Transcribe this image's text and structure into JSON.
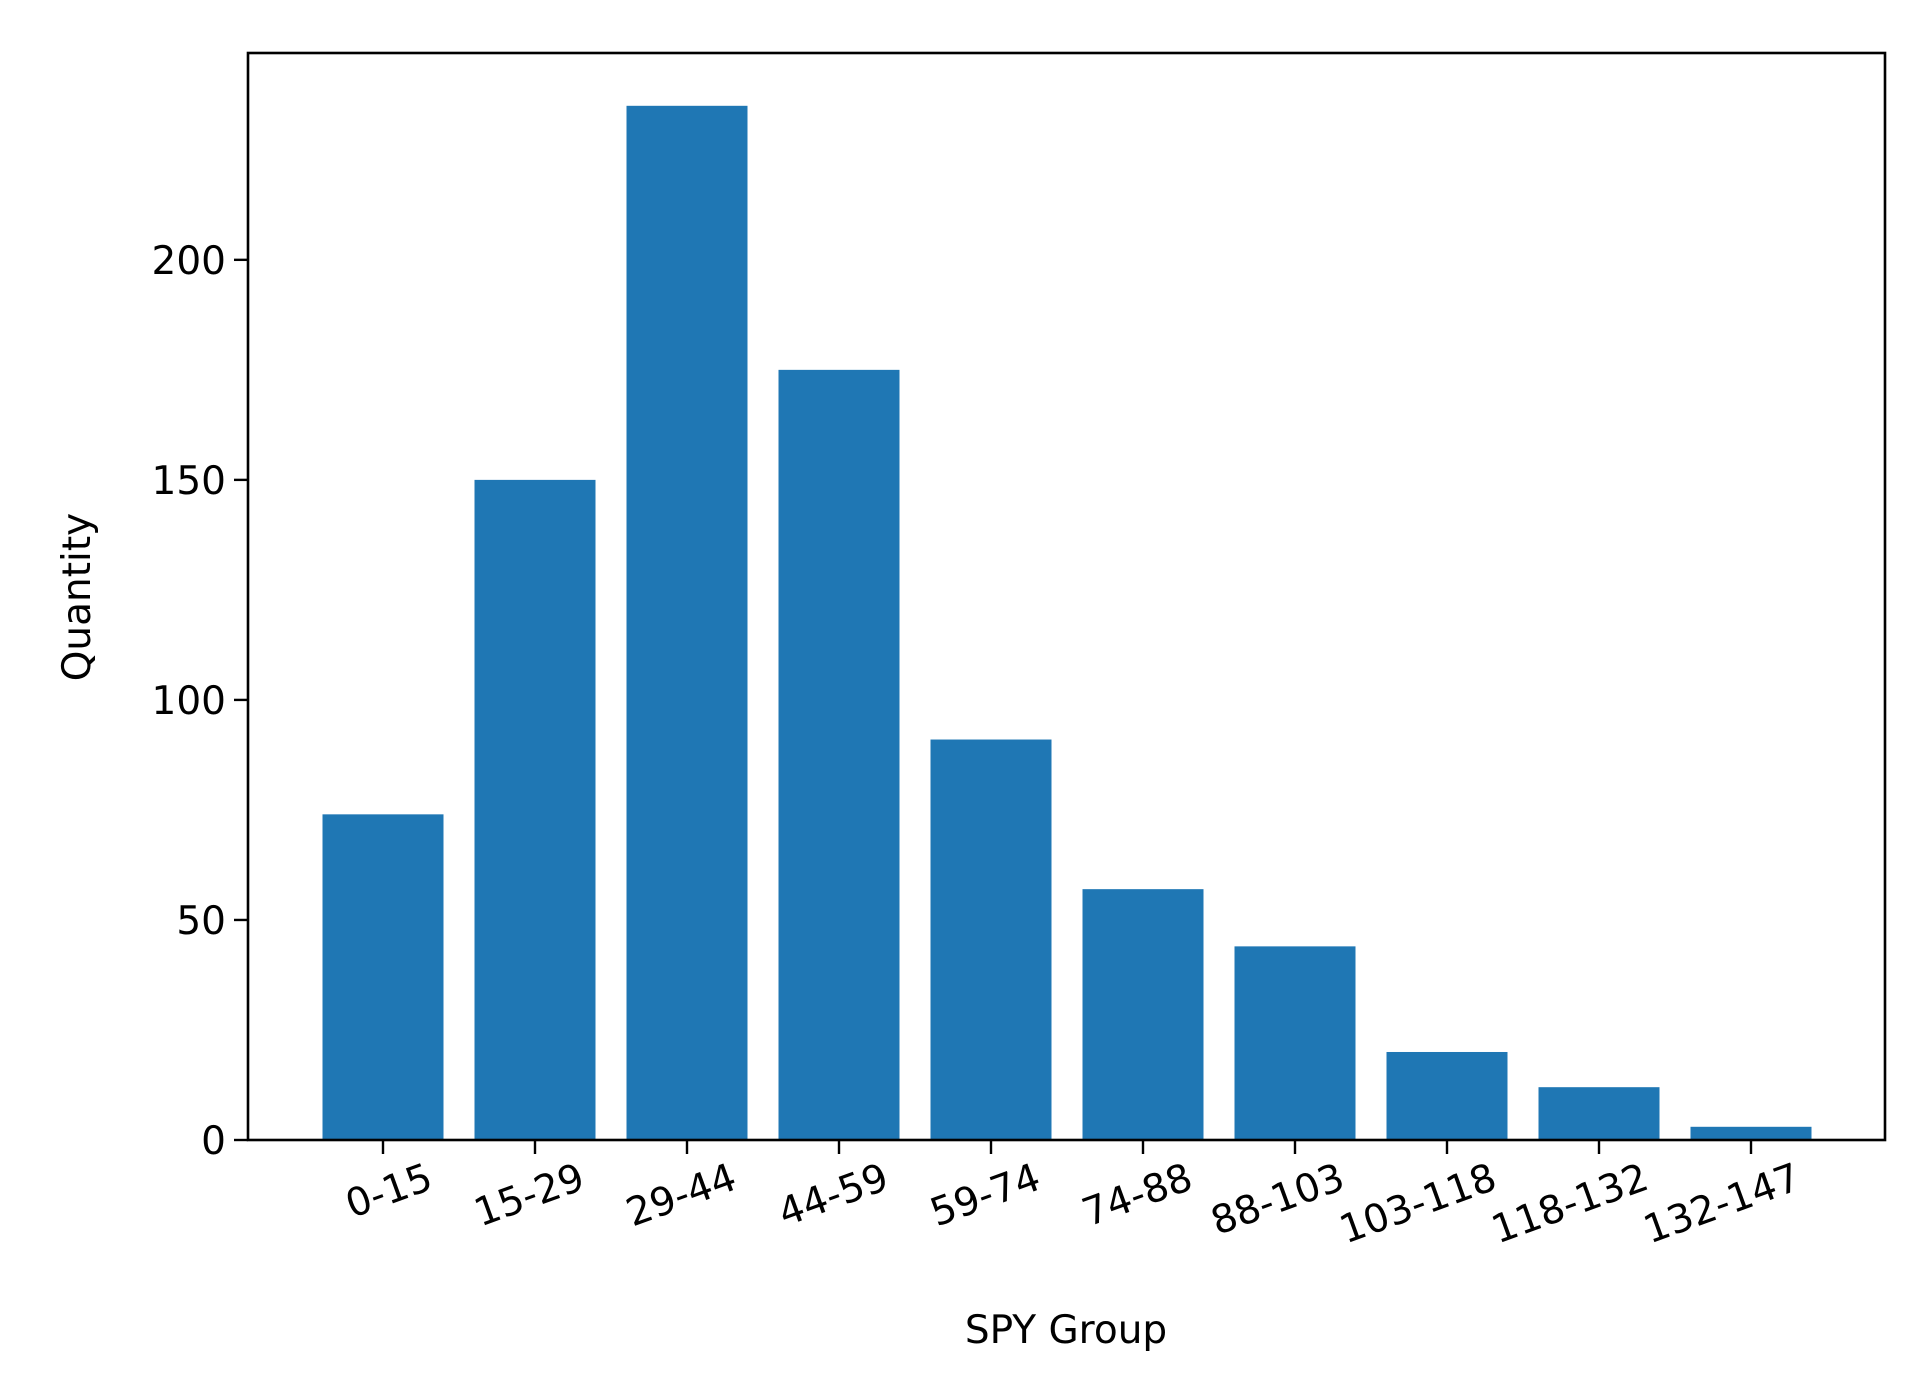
{
  "chart_data": {
    "type": "bar",
    "categories": [
      "0-15",
      "15-29",
      "29-44",
      "44-59",
      "59-74",
      "74-88",
      "88-103",
      "103-118",
      "118-132",
      "132-147"
    ],
    "values": [
      74,
      150,
      235,
      175,
      91,
      57,
      44,
      20,
      12,
      3
    ],
    "xlabel": "SPY Group",
    "ylabel": "Quantity",
    "ylim": [
      0,
      247
    ],
    "yticks": [
      0,
      50,
      100,
      150,
      200
    ],
    "bar_color": "#1f77b4",
    "grid": false,
    "legend": "none",
    "xtick_rotation": "rotated about 20 degrees"
  }
}
